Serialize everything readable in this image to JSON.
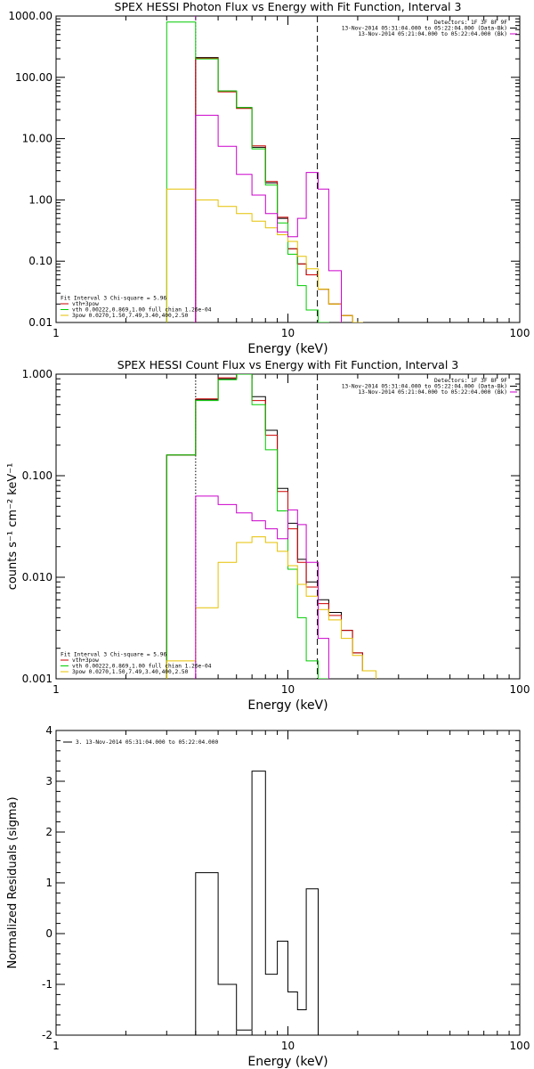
{
  "chart_data": [
    {
      "type": "line",
      "title": "SPEX HESSI Photon Flux vs Energy with Fit Function, Interval 3",
      "xlabel": "Energy (keV)",
      "ylabel": "",
      "xscale": "log",
      "yscale": "log",
      "xlim": [
        1,
        100
      ],
      "ylim": [
        0.01,
        1000
      ],
      "xticks": [
        "1",
        "10",
        "100"
      ],
      "yticks": [
        "0.01",
        "0.10",
        "1.00",
        "10.00",
        "100.00",
        "1000.00"
      ],
      "edges": [
        3,
        4,
        5,
        6,
        7,
        8,
        9,
        10,
        11,
        12,
        13.5,
        15,
        17,
        19,
        21,
        24
      ],
      "vlines": [
        {
          "x": 4,
          "color": "#cc00cc",
          "style": "dotted"
        },
        {
          "x": 13.4,
          "color": "#000000",
          "style": "dashed"
        }
      ],
      "legend_top_right": [
        {
          "text": "Detectors: 1F 3F 8F 9F",
          "color": ""
        },
        {
          "text": "13-Nov-2014 05:31:04.000 to 05:22:04.000 (Data-Bk)",
          "color": "#000000"
        },
        {
          "text": "13-Nov-2014 05:21:04.000 to 05:22:04.000 (Bk)",
          "color": "#cc00cc"
        }
      ],
      "legend_bottom_left": [
        {
          "text": "Fit Interval 3   Chi-square = 5.96",
          "color": ""
        },
        {
          "text": "vth+3pow",
          "color": "#cc0000"
        },
        {
          "text": "vth 0.00222,0.869,1.00   full chian 1.26e-04",
          "color": "#00cc00"
        },
        {
          "text": "3pow 0.0270,1.50,7.49,3.40,400,2.50",
          "color": "#e6c000"
        }
      ],
      "series": [
        {
          "name": "Data-Bk",
          "color": "#000000",
          "values": [
            null,
            210,
            60,
            32,
            7.2,
            1.9,
            0.5,
            0.16,
            0.09,
            0.06,
            0.035,
            0.02,
            0.013,
            0.01,
            0.009
          ]
        },
        {
          "name": "vth+3pow",
          "color": "#cc0000",
          "values": [
            null,
            205,
            58,
            31,
            7.6,
            2.0,
            0.52,
            0.16,
            0.09,
            0.06,
            0.035,
            0.02,
            0.013,
            0.01,
            0.009
          ]
        },
        {
          "name": "vth",
          "color": "#00cc00",
          "values": [
            800,
            200,
            60,
            32,
            6.8,
            1.75,
            0.42,
            0.13,
            0.04,
            0.016,
            0.01,
            null,
            null,
            null,
            null
          ]
        },
        {
          "name": "3pow",
          "color": "#e6c000",
          "values": [
            1.5,
            1.0,
            0.78,
            0.6,
            0.45,
            0.35,
            0.27,
            0.21,
            0.12,
            0.075,
            0.035,
            0.02,
            0.013,
            0.01,
            0.009
          ]
        },
        {
          "name": "Bk",
          "color": "#cc00cc",
          "values": [
            null,
            24,
            7.5,
            2.6,
            1.2,
            0.6,
            0.3,
            0.25,
            0.5,
            2.8,
            1.5,
            0.07,
            null,
            null,
            null
          ]
        }
      ]
    },
    {
      "type": "line",
      "title": "SPEX HESSI Count Flux vs Energy with Fit Function, Interval 3",
      "xlabel": "Energy (keV)",
      "ylabel": "counts s⁻¹ cm⁻² keV⁻¹",
      "xscale": "log",
      "yscale": "log",
      "xlim": [
        1,
        100
      ],
      "ylim": [
        0.001,
        1.0
      ],
      "xticks": [
        "1",
        "10",
        "100"
      ],
      "yticks": [
        "0.001",
        "0.010",
        "0.100",
        "1.000"
      ],
      "edges": [
        3,
        4,
        5,
        6,
        7,
        8,
        9,
        10,
        11,
        12,
        13.5,
        15,
        17,
        19,
        21,
        24
      ],
      "vlines": [
        {
          "x": 4,
          "color": "#000000",
          "style": "dotted"
        },
        {
          "x": 13.4,
          "color": "#000000",
          "style": "dashed"
        }
      ],
      "legend_top_right": [
        {
          "text": "Detectors: 1F 3F 8F 9F",
          "color": ""
        },
        {
          "text": "13-Nov-2014 05:31:04.000 to 05:22:04.000 (Data-Bk)",
          "color": "#000000"
        },
        {
          "text": "13-Nov-2014 05:21:04.000 to 05:22:04.000 (Bk)",
          "color": "#cc00cc"
        }
      ],
      "legend_bottom_left": [
        {
          "text": "Fit Interval 3   Chi-square = 5.96",
          "color": ""
        },
        {
          "text": "vth+3pow",
          "color": "#cc0000"
        },
        {
          "text": "vth 0.00222,0.869,1.00   full chian 1.26e-04",
          "color": "#00cc00"
        },
        {
          "text": "3pow 0.0270,1.50,7.49,3.40,400,2.50",
          "color": "#e6c000"
        }
      ],
      "series": [
        {
          "name": "Data-Bk",
          "color": "#000000",
          "values": [
            0.16,
            0.56,
            0.9,
            1.0,
            0.6,
            0.28,
            0.075,
            0.034,
            0.015,
            0.009,
            0.006,
            0.0045,
            0.003,
            0.0018,
            0.0012
          ]
        },
        {
          "name": "vth+3pow",
          "color": "#cc0000",
          "values": [
            0.16,
            0.57,
            0.92,
            1.02,
            0.55,
            0.25,
            0.07,
            0.03,
            0.014,
            0.008,
            0.0055,
            0.0042,
            0.003,
            0.0018,
            0.0012
          ]
        },
        {
          "name": "vth",
          "color": "#00cc00",
          "values": [
            0.16,
            0.55,
            0.88,
            1.0,
            0.5,
            0.18,
            0.045,
            0.012,
            0.004,
            0.0015,
            0.001,
            null,
            null,
            null,
            null
          ]
        },
        {
          "name": "3pow",
          "color": "#e6c000",
          "values": [
            0.0015,
            0.005,
            0.014,
            0.022,
            0.025,
            0.022,
            0.018,
            0.013,
            0.0085,
            0.0065,
            0.0048,
            0.0038,
            0.0025,
            0.0017,
            0.0012
          ]
        },
        {
          "name": "Bk",
          "color": "#cc00cc",
          "values": [
            null,
            0.063,
            0.052,
            0.043,
            0.036,
            0.03,
            0.024,
            0.046,
            0.033,
            0.014,
            0.0025,
            null,
            null,
            null,
            null
          ]
        }
      ]
    },
    {
      "type": "line",
      "title": "",
      "xlabel": "Energy (keV)",
      "ylabel": "Normalized Residuals (sigma)",
      "xscale": "log",
      "yscale": "linear",
      "xlim": [
        1,
        100
      ],
      "ylim": [
        -2,
        4
      ],
      "xticks": [
        "1",
        "10",
        "100"
      ],
      "yticks": [
        "-2",
        "-1",
        "0",
        "1",
        "2",
        "3",
        "4"
      ],
      "edges": [
        4,
        5,
        6,
        7,
        8,
        9,
        10,
        11,
        12,
        13.5
      ],
      "legend_top_left": [
        {
          "text": "3. 13-Nov-2014 05:31:04.000 to 05:22:04.000",
          "color": "#000000"
        }
      ],
      "series": [
        {
          "name": "3. 13-Nov-2014 05:31:04.000 to 05:22:04.000",
          "color": "#000000",
          "values": [
            1.2,
            -1.0,
            -1.9,
            3.2,
            -0.8,
            -0.15,
            -1.15,
            -1.5,
            0.88
          ]
        }
      ]
    }
  ]
}
